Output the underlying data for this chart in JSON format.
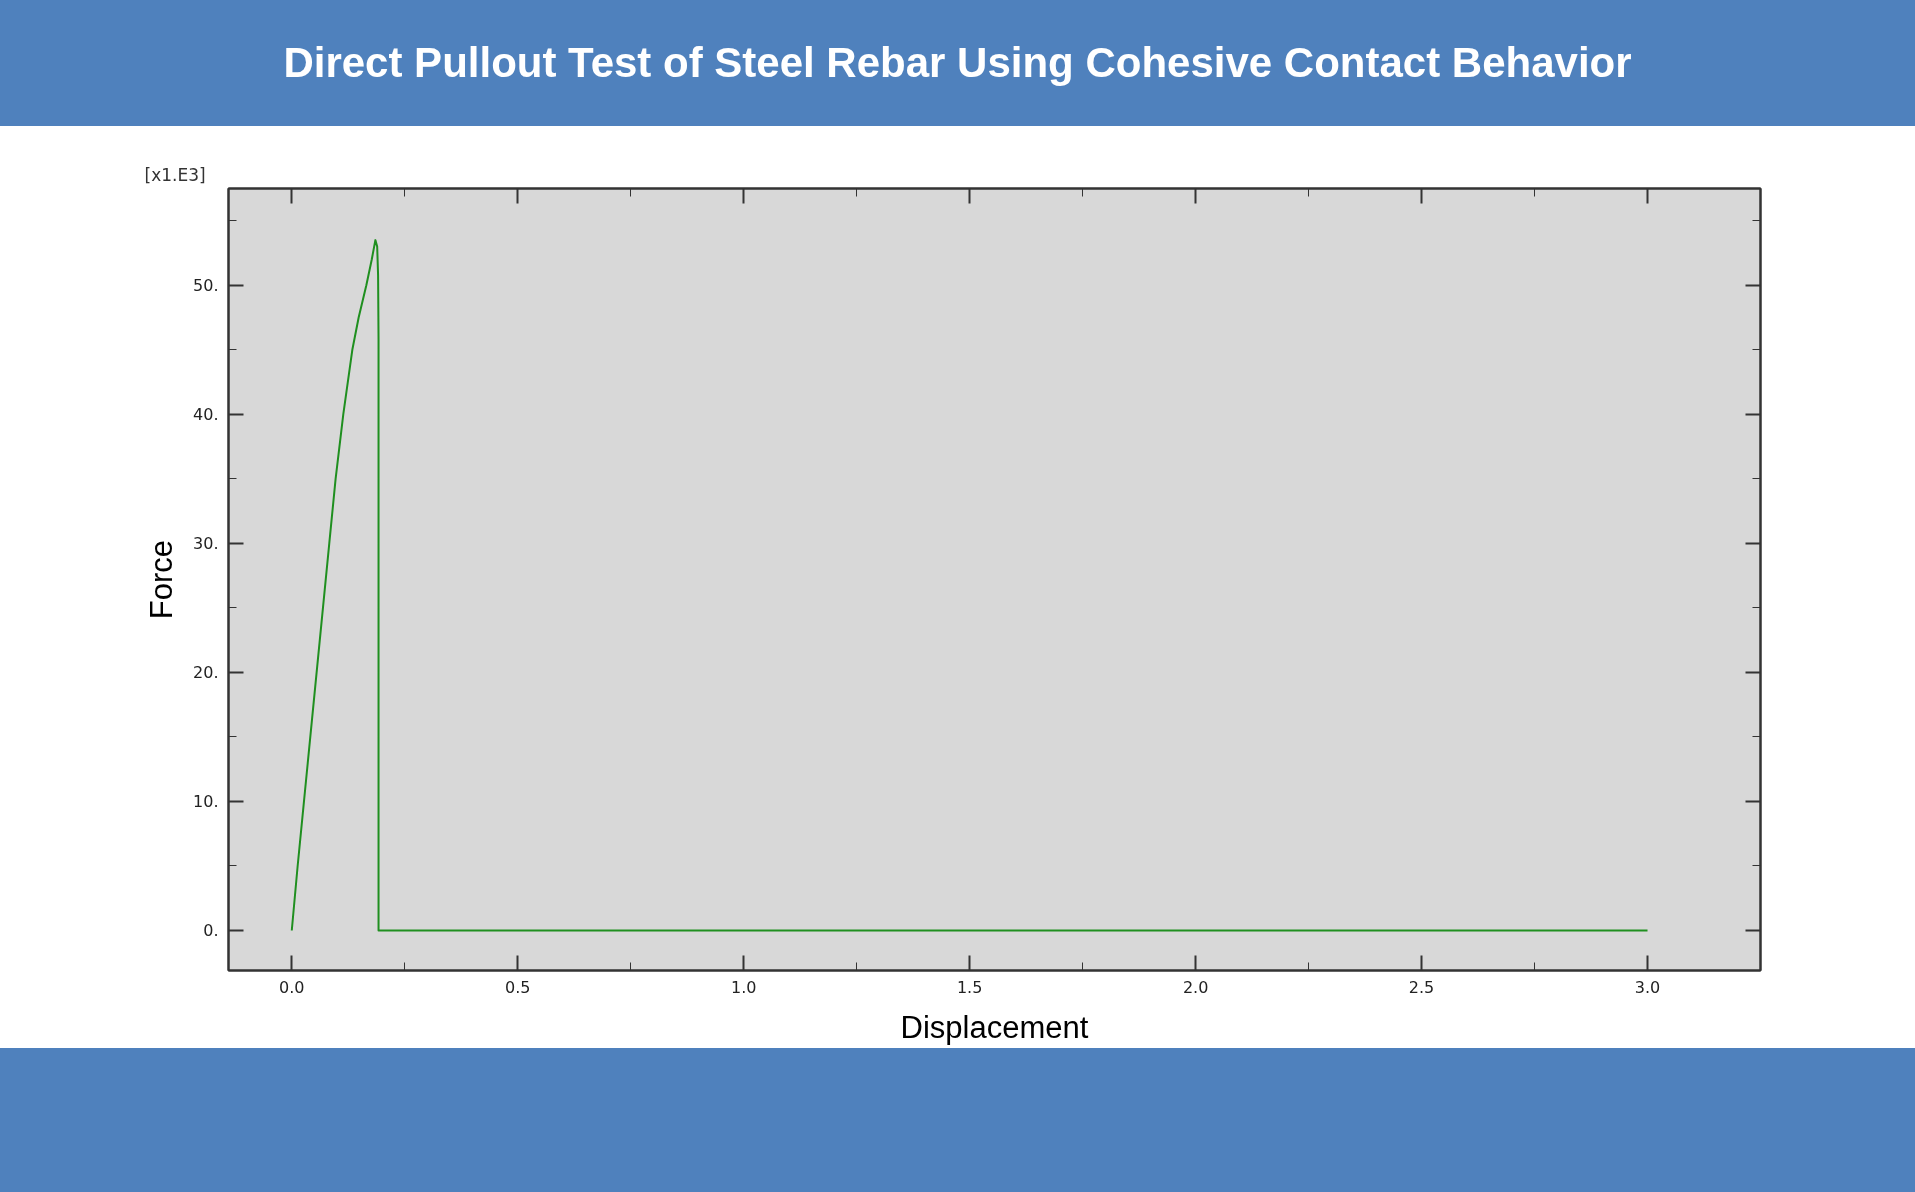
{
  "chart_data": {
    "type": "line",
    "title": "Direct Pullout Test of Steel Rebar Using Cohesive Contact Behavior",
    "xlabel": "Displacement",
    "ylabel": "Force",
    "annotations": [
      "[x1.E3]"
    ],
    "x": [
      0,
      0.013,
      0.027,
      0.041,
      0.055,
      0.069,
      0.083,
      0.097,
      0.114,
      0.134,
      0.148,
      0.165,
      0.177,
      0.185,
      0.189,
      0.191,
      0.192,
      0.192,
      3.0
    ],
    "series": [
      {
        "color": "#1f8f1f",
        "values": [
          0,
          5,
          10,
          15,
          20,
          25,
          30,
          35,
          40,
          45,
          47.5,
          50,
          52,
          53.5,
          53,
          50.8,
          45.8,
          0,
          0
        ]
      }
    ],
    "xlim": [
      -0.14,
      3.25
    ],
    "ylim": [
      -3.1,
      57.5
    ],
    "xticks": [
      {
        "value": 0,
        "label": "0.0"
      },
      {
        "value": 0.25,
        "label": null
      },
      {
        "value": 0.5,
        "label": "0.5"
      },
      {
        "value": 0.75,
        "label": null
      },
      {
        "value": 1,
        "label": "1.0"
      },
      {
        "value": 1.25,
        "label": null
      },
      {
        "value": 1.5,
        "label": "1.5"
      },
      {
        "value": 1.75,
        "label": null
      },
      {
        "value": 2,
        "label": "2.0"
      },
      {
        "value": 2.25,
        "label": null
      },
      {
        "value": 2.5,
        "label": "2.5"
      },
      {
        "value": 2.75,
        "label": null
      },
      {
        "value": 3,
        "label": "3.0"
      }
    ],
    "yticks": [
      {
        "value": 0,
        "label": "0."
      },
      {
        "value": 5,
        "label": null
      },
      {
        "value": 10,
        "label": "10."
      },
      {
        "value": 15,
        "label": null
      },
      {
        "value": 20,
        "label": "20."
      },
      {
        "value": 25,
        "label": null
      },
      {
        "value": 30,
        "label": "30."
      },
      {
        "value": 35,
        "label": null
      },
      {
        "value": 40,
        "label": "40."
      },
      {
        "value": 45,
        "label": null
      },
      {
        "value": 50,
        "label": "50."
      },
      {
        "value": 55,
        "label": null
      }
    ],
    "line_style": "solid"
  }
}
